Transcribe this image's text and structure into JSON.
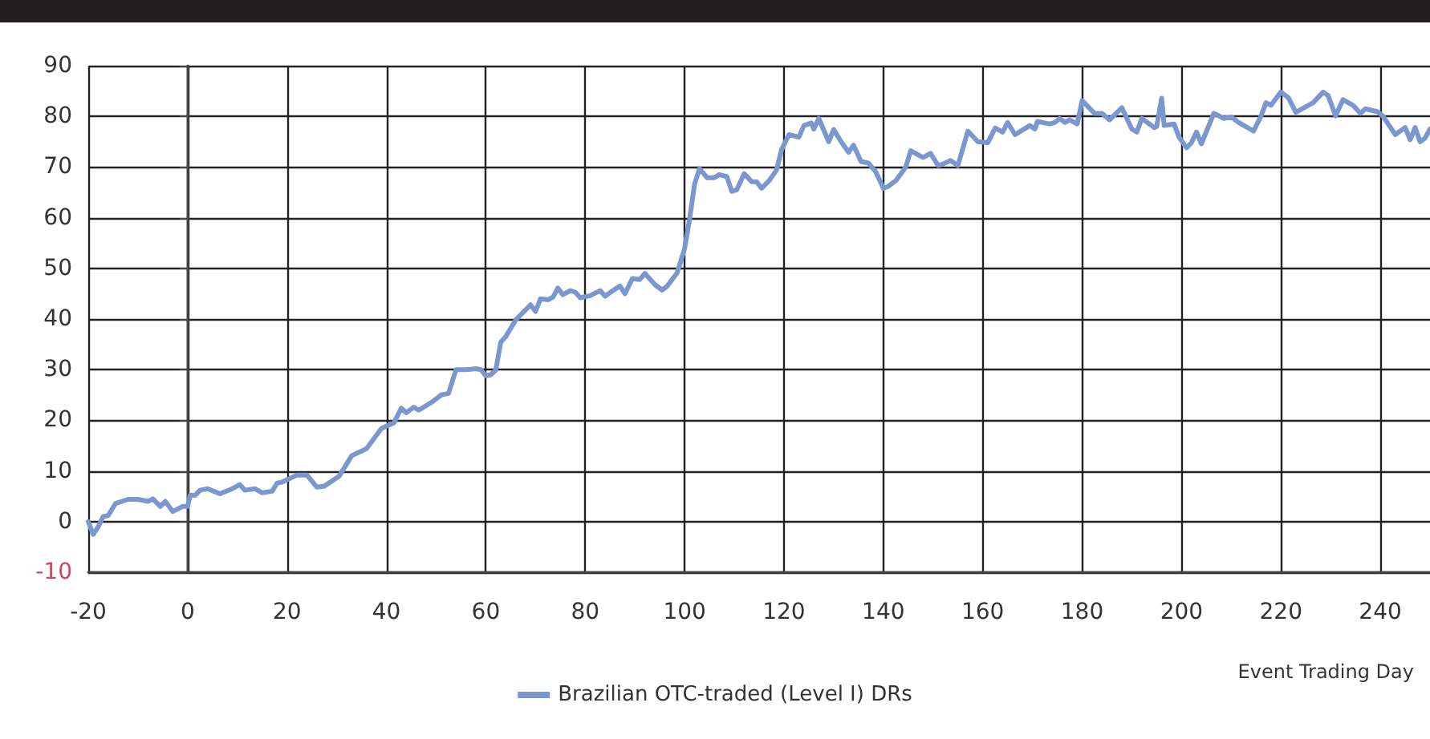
{
  "chart_data": {
    "type": "line",
    "xlabel": "Event Trading Day",
    "x": [
      -20,
      -19,
      -18,
      -17,
      -16,
      -14.5,
      -12,
      -10,
      -8,
      -7,
      -5.5,
      -4.5,
      -3,
      -1,
      0,
      0.5,
      1.5,
      2.5,
      4,
      6.5,
      9,
      10.5,
      11.5,
      13.5,
      15,
      17,
      18,
      19,
      22,
      24,
      26,
      27.5,
      29,
      30.5,
      33,
      36,
      39,
      41.5,
      43,
      44,
      45.5,
      46.5,
      49,
      51,
      52.5,
      54,
      56,
      58,
      59,
      60,
      61,
      62,
      63,
      64,
      66,
      69,
      70,
      71,
      72.5,
      73.5,
      74.5,
      75.5,
      77,
      78,
      79,
      81,
      83,
      84,
      86,
      87,
      88,
      89.5,
      91,
      92,
      94,
      95.5,
      96.5,
      98.5,
      99,
      100,
      101,
      102,
      103,
      104.5,
      106,
      107,
      108.5,
      109.5,
      110.5,
      112,
      113.5,
      114.5,
      115.5,
      117,
      118.5,
      119.5,
      121,
      123,
      124,
      125.5,
      126,
      127,
      129,
      130,
      131.5,
      133,
      134,
      135.5,
      137,
      138.5,
      140,
      141,
      142.5,
      144.5,
      145.5,
      147,
      148,
      149.5,
      151,
      152,
      153.5,
      155,
      157,
      159,
      161,
      162.5,
      164,
      165,
      166.5,
      169.5,
      170.5,
      171,
      173.5,
      174.5,
      175.5,
      176.5,
      177.5,
      179,
      180,
      182.5,
      184,
      185.5,
      188,
      190,
      191,
      192,
      194.5,
      195,
      196,
      196.5,
      198.5,
      199.5,
      201,
      202,
      203,
      204,
      206.5,
      208.5,
      210,
      211.5,
      214.5,
      216,
      217,
      218,
      220,
      221.5,
      223,
      226.5,
      228.5,
      229.5,
      231,
      232.5,
      234.5,
      236,
      237,
      239.5,
      240.5,
      243,
      245,
      246,
      247,
      248,
      249,
      250
    ],
    "series": [
      {
        "name": "Brazilian OTC-traded (Level I) DRs",
        "color": "#7b97d0",
        "values": [
          0,
          -2.5,
          -1,
          1,
          1.2,
          3.6,
          4.4,
          4.4,
          4,
          4.5,
          3,
          4,
          2,
          3,
          3,
          5.2,
          5.2,
          6.2,
          6.5,
          5.5,
          6.5,
          7.3,
          6.2,
          6.5,
          5.7,
          6,
          7.6,
          7.8,
          9.2,
          9.2,
          6.8,
          7,
          8,
          9,
          13,
          14.4,
          18.4,
          19.5,
          22.4,
          21.5,
          22.6,
          22,
          23.5,
          25,
          25.3,
          30,
          30,
          30.2,
          30,
          28.8,
          29,
          29.9,
          35.4,
          36.5,
          39.8,
          42.8,
          41.5,
          44,
          43.8,
          44.3,
          46.1,
          44.8,
          45.6,
          45.3,
          44.2,
          44.6,
          45.6,
          44.5,
          45.9,
          46.5,
          45,
          48,
          47.8,
          49,
          46.8,
          45.7,
          46.5,
          49.1,
          50.7,
          53.9,
          59.7,
          66.6,
          69.7,
          67.9,
          67.9,
          68.5,
          68.1,
          65.2,
          65.5,
          68.7,
          67.1,
          67.1,
          65.8,
          67.3,
          69.4,
          73.4,
          76.4,
          75.9,
          78.2,
          78.7,
          77.5,
          79.6,
          75,
          77.4,
          75,
          72.9,
          74.3,
          71.1,
          70.8,
          69,
          65.8,
          66.2,
          67.3,
          70,
          73.2,
          72.4,
          71.9,
          72.7,
          70.3,
          70.6,
          71.3,
          70.3,
          77.1,
          75,
          74.8,
          77.7,
          76.9,
          78.8,
          76.4,
          78.2,
          77.5,
          79,
          78.5,
          78.8,
          79.6,
          78.8,
          79.3,
          78.5,
          83.1,
          80.6,
          80.6,
          79.3,
          81.7,
          77.5,
          76.9,
          79.6,
          77.8,
          78,
          83.6,
          78.2,
          78.5,
          75.9,
          73.8,
          74.8,
          76.9,
          74.6,
          80.6,
          79.6,
          79.9,
          78.8,
          77.1,
          80.1,
          82.7,
          82.2,
          84.8,
          83.7,
          80.8,
          82.7,
          84.8,
          84.1,
          80.1,
          83.3,
          82.2,
          80.6,
          81.5,
          80.9,
          80.1,
          76.4,
          77.8,
          75.4,
          77.8,
          75,
          75.7,
          77.5
        ]
      }
    ],
    "xlim": [
      -20,
      250
    ],
    "xticks": [
      -20,
      0,
      20,
      40,
      60,
      80,
      100,
      120,
      140,
      160,
      180,
      200,
      220,
      240
    ],
    "ylim": [
      -10,
      90
    ],
    "yticks": [
      -10,
      0,
      10,
      20,
      30,
      40,
      50,
      60,
      70,
      80,
      90
    ],
    "grid": true,
    "legend": "bottom",
    "marker": "none",
    "line_style": "solid"
  }
}
